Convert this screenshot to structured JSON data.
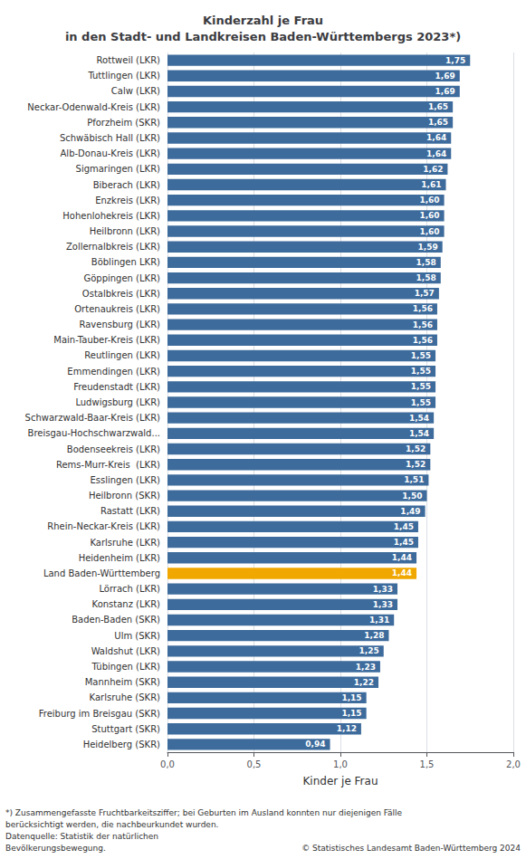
{
  "chart_data": {
    "type": "bar",
    "orientation": "horizontal",
    "title": "Kinderzahl je Frau\nin den Stadt- und Landkreisen Baden-Württembergs 2023*)",
    "xlabel": "Kinder je Frau",
    "categories": [
      "Rottweil (LKR)",
      "Tuttlingen (LKR)",
      "Calw (LKR)",
      "Neckar-Odenwald-Kreis (LKR)",
      "Pforzheim (SKR)",
      "Schwäbisch Hall (LKR)",
      "Alb-Donau-Kreis (LKR)",
      "Sigmaringen (LKR)",
      "Biberach (LKR)",
      "Enzkreis (LKR)",
      "Hohenlohekreis (LKR)",
      "Heilbronn (LKR)",
      "Zollernalbkreis (LKR)",
      "Böblingen LKR)",
      "Göppingen (LKR)",
      "Ostalbkreis (LKR)",
      "Ortenaukreis (LKR)",
      "Ravensburg (LKR)",
      "Main-Tauber-Kreis (LKR)",
      "Reutlingen (LKR)",
      "Emmendingen (LKR)",
      "Freudenstadt (LKR)",
      "Ludwigsburg (LKR)",
      "Schwarzwald-Baar-Kreis (LKR)",
      "Breisgau-Hochschwarzwald...",
      "Bodenseekreis (LKR)",
      "Rems-Murr-Kreis  (LKR)",
      "Esslingen (LKR)",
      "Heilbronn (SKR)",
      "Rastatt (LKR)",
      "Rhein-Neckar-Kreis (LKR)",
      "Karlsruhe (LKR)",
      "Heidenheim (LKR)",
      "Land Baden-Württemberg",
      "Lörrach (LKR)",
      "Konstanz (LKR)",
      "Baden-Baden (SKR)",
      "Ulm (SKR)",
      "Waldshut (LKR)",
      "Tübingen (LKR)",
      "Mannheim (SKR)",
      "Karlsruhe (SKR)",
      "Freiburg im Breisgau (SKR)",
      "Stuttgart (SKR)",
      "Heidelberg (SKR)"
    ],
    "values": [
      1.75,
      1.69,
      1.69,
      1.65,
      1.65,
      1.64,
      1.64,
      1.62,
      1.61,
      1.6,
      1.6,
      1.6,
      1.59,
      1.58,
      1.58,
      1.57,
      1.56,
      1.56,
      1.56,
      1.55,
      1.55,
      1.55,
      1.55,
      1.54,
      1.54,
      1.52,
      1.52,
      1.51,
      1.5,
      1.49,
      1.45,
      1.45,
      1.44,
      1.44,
      1.33,
      1.33,
      1.31,
      1.28,
      1.25,
      1.23,
      1.22,
      1.15,
      1.15,
      1.12,
      0.94
    ],
    "value_labels": [
      "1,75",
      "1,69",
      "1,69",
      "1,65",
      "1,65",
      "1,64",
      "1,64",
      "1,62",
      "1,61",
      "1,60",
      "1,60",
      "1,60",
      "1,59",
      "1,58",
      "1,58",
      "1,57",
      "1,56",
      "1,56",
      "1,56",
      "1,55",
      "1,55",
      "1,55",
      "1,55",
      "1,54",
      "1,54",
      "1,52",
      "1,52",
      "1,51",
      "1,50",
      "1,49",
      "1,45",
      "1,45",
      "1,44",
      "1,44",
      "1,33",
      "1,33",
      "1,31",
      "1,28",
      "1,25",
      "1,23",
      "1,22",
      "1,15",
      "1,15",
      "1,12",
      "0,94"
    ],
    "data_labels": true,
    "colors": [
      "#3d6b9c",
      "#3d6b9c",
      "#3d6b9c",
      "#3d6b9c",
      "#3d6b9c",
      "#3d6b9c",
      "#3d6b9c",
      "#3d6b9c",
      "#3d6b9c",
      "#3d6b9c",
      "#3d6b9c",
      "#3d6b9c",
      "#3d6b9c",
      "#3d6b9c",
      "#3d6b9c",
      "#3d6b9c",
      "#3d6b9c",
      "#3d6b9c",
      "#3d6b9c",
      "#3d6b9c",
      "#3d6b9c",
      "#3d6b9c",
      "#3d6b9c",
      "#3d6b9c",
      "#3d6b9c",
      "#3d6b9c",
      "#3d6b9c",
      "#3d6b9c",
      "#3d6b9c",
      "#3d6b9c",
      "#3d6b9c",
      "#3d6b9c",
      "#3d6b9c",
      "#f0a800",
      "#3d6b9c",
      "#3d6b9c",
      "#3d6b9c",
      "#3d6b9c",
      "#3d6b9c",
      "#3d6b9c",
      "#3d6b9c",
      "#3d6b9c",
      "#3d6b9c",
      "#3d6b9c",
      "#3d6b9c"
    ],
    "xlim": [
      0,
      2.0
    ],
    "xticks": [
      {
        "value": 0.0,
        "label": "0,0"
      },
      {
        "value": 0.5,
        "label": "0,5"
      },
      {
        "value": 1.0,
        "label": "1,0"
      },
      {
        "value": 1.5,
        "label": "1,5"
      },
      {
        "value": 2.0,
        "label": "2,0"
      }
    ],
    "grid": true,
    "annotations": [
      "*) Zusammengefasste Fruchtbarkeitsziffer; bei Geburten im Ausland konnten nur diejenigen Fälle",
      "berücksichtigt werden, die nachbeurkundet wurden.",
      "Datenquelle: Statistik der natürlichen",
      "Bevölkerungsbewegung.",
      "© Statistisches Landesamt Baden-Württemberg 2024"
    ]
  }
}
